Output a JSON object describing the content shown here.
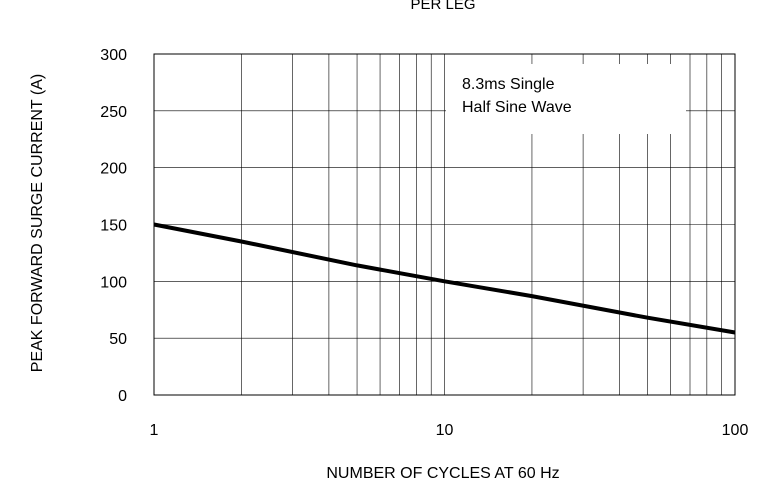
{
  "chart_data": {
    "type": "line",
    "title": "PER LEG",
    "xlabel": "NUMBER OF CYCLES AT 60 Hz",
    "ylabel": "PEAK FORWARD SURGE CURRENT (A)",
    "x_scale": "log",
    "xlim": [
      1,
      100
    ],
    "ylim": [
      0,
      300
    ],
    "x_ticks": [
      "1",
      "10",
      "100"
    ],
    "y_ticks": [
      "0",
      "50",
      "100",
      "150",
      "200",
      "250",
      "300"
    ],
    "grid": true,
    "annotation": [
      "8.3ms Single",
      "Half Sine Wave"
    ],
    "series": [
      {
        "x": [
          1,
          2,
          5,
          10,
          20,
          50,
          100
        ],
        "y": [
          150,
          135,
          114,
          100,
          87,
          68,
          55
        ]
      }
    ]
  }
}
